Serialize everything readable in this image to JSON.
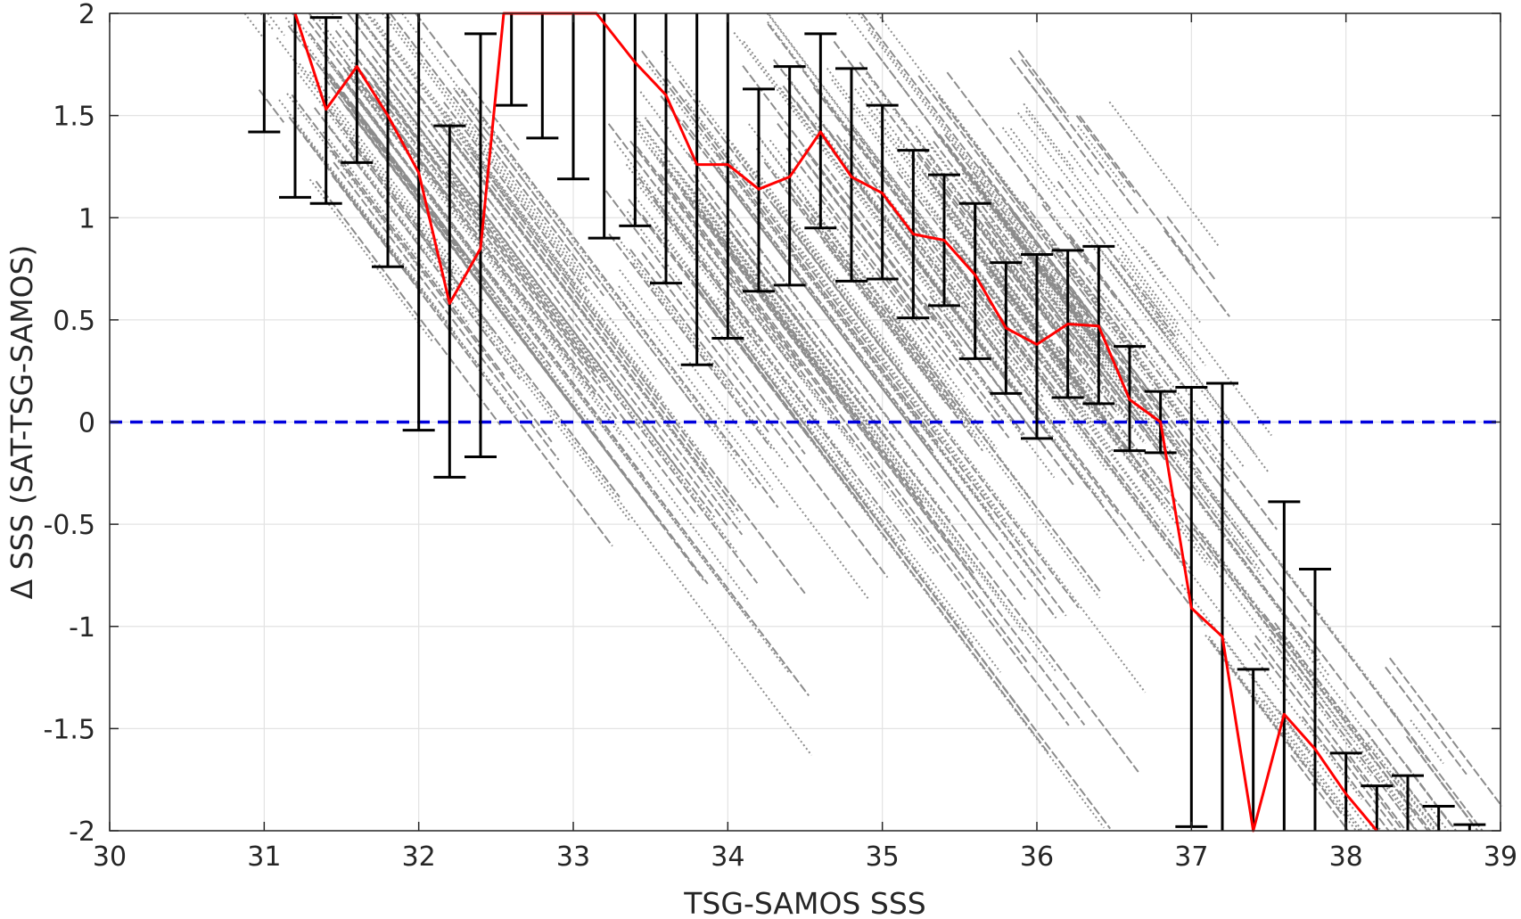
{
  "chart_data": {
    "type": "scatter",
    "title": "",
    "xlabel": "TSG-SAMOS SSS",
    "ylabel": "Δ SSS (SAT-TSG-SAMOS)",
    "xlim": [
      30,
      39
    ],
    "ylim": [
      -2,
      2
    ],
    "xticks": [
      "30",
      "31",
      "32",
      "33",
      "34",
      "35",
      "36",
      "37",
      "38",
      "39"
    ],
    "yticks": [
      "-2",
      "-1.5",
      "-1",
      "-0.5",
      "0",
      "0.5",
      "1",
      "1.5",
      "2"
    ],
    "grid": true,
    "colors": {
      "scatter": "#8c8c8c",
      "mean_line": "#ff0000",
      "error_bars": "#000000",
      "zero_line": "#0000dd"
    },
    "reference_line": {
      "y": 0,
      "style": "dashed"
    },
    "scatter_bands": [
      {
        "x0": 31.05,
        "x1": 32.5,
        "y0": 1.8,
        "n": 20
      },
      {
        "x0": 31.25,
        "x1": 33.1,
        "y0": 1.55,
        "n": 22
      },
      {
        "x0": 31.4,
        "x1": 34.1,
        "y0": 1.95,
        "n": 26
      },
      {
        "x0": 32.0,
        "x1": 34.5,
        "y0": 1.2,
        "n": 22
      },
      {
        "x0": 33.2,
        "x1": 35.0,
        "y0": 1.1,
        "n": 18
      },
      {
        "x0": 33.4,
        "x1": 36.0,
        "y0": 1.4,
        "n": 24
      },
      {
        "x0": 33.7,
        "x1": 36.5,
        "y0": 0.9,
        "n": 22
      },
      {
        "x0": 34.0,
        "x1": 35.5,
        "y0": 1.6,
        "n": 16
      },
      {
        "x0": 34.3,
        "x1": 36.3,
        "y0": 1.3,
        "n": 20
      },
      {
        "x0": 34.6,
        "x1": 36.8,
        "y0": 1.7,
        "n": 22
      },
      {
        "x0": 35.0,
        "x1": 36.5,
        "y0": 1.0,
        "n": 16
      },
      {
        "x0": 35.2,
        "x1": 36.9,
        "y0": 1.3,
        "n": 18
      },
      {
        "x0": 35.4,
        "x1": 37.0,
        "y0": 0.85,
        "n": 16
      },
      {
        "x0": 35.6,
        "x1": 37.3,
        "y0": 1.1,
        "n": 18
      },
      {
        "x0": 35.8,
        "x1": 36.6,
        "y0": 1.4,
        "n": 10
      },
      {
        "x0": 36.0,
        "x1": 37.5,
        "y0": 0.6,
        "n": 16
      },
      {
        "x0": 36.2,
        "x1": 37.0,
        "y0": 1.2,
        "n": 10
      },
      {
        "x0": 36.5,
        "x1": 37.1,
        "y0": 0.7,
        "n": 8
      },
      {
        "x0": 36.9,
        "x1": 38.3,
        "y0": -0.7,
        "n": 16
      },
      {
        "x0": 37.4,
        "x1": 38.6,
        "y0": -1.3,
        "n": 14
      },
      {
        "x0": 38.0,
        "x1": 38.9,
        "y0": -1.6,
        "n": 10
      },
      {
        "x0": 38.3,
        "x1": 38.9,
        "y0": -1.65,
        "n": 8
      },
      {
        "x0": 30.7,
        "x1": 31.0,
        "y0": 1.92,
        "n": 4
      }
    ],
    "mean_series": {
      "x": [
        31.2,
        31.4,
        31.6,
        31.8,
        32.0,
        32.2,
        32.4,
        32.55,
        33.15,
        33.4,
        33.6,
        33.8,
        34.0,
        34.2,
        34.4,
        34.6,
        34.8,
        35.0,
        35.2,
        35.4,
        35.6,
        35.8,
        36.0,
        36.2,
        36.4,
        36.6,
        36.8,
        37.0,
        37.2,
        37.4,
        37.6,
        37.8,
        38.0,
        38.2
      ],
      "y": [
        2.0,
        1.53,
        1.74,
        1.5,
        1.22,
        0.58,
        0.85,
        2.0,
        2.0,
        1.76,
        1.6,
        1.26,
        1.26,
        1.14,
        1.2,
        1.42,
        1.2,
        1.12,
        0.92,
        0.89,
        0.72,
        0.46,
        0.38,
        0.48,
        0.47,
        0.11,
        0.0,
        -0.91,
        -1.05,
        -2.0,
        -1.43,
        -1.6,
        -1.82,
        -2.0
      ]
    },
    "error_bars": [
      {
        "x": 31.0,
        "low": 1.42,
        "high": 2.0
      },
      {
        "x": 31.2,
        "low": 1.1,
        "high": 2.0
      },
      {
        "x": 31.4,
        "low": 1.07,
        "high": 1.98
      },
      {
        "x": 31.6,
        "low": 1.27,
        "high": 2.0
      },
      {
        "x": 31.8,
        "low": 0.76,
        "high": 2.0
      },
      {
        "x": 32.0,
        "low": -0.04,
        "high": 2.0
      },
      {
        "x": 32.2,
        "low": -0.27,
        "high": 1.45
      },
      {
        "x": 32.4,
        "low": -0.17,
        "high": 1.9
      },
      {
        "x": 32.6,
        "low": 1.55,
        "high": 2.0
      },
      {
        "x": 32.8,
        "low": 1.39,
        "high": 2.0
      },
      {
        "x": 33.0,
        "low": 1.19,
        "high": 2.0
      },
      {
        "x": 33.2,
        "low": 0.9,
        "high": 2.0
      },
      {
        "x": 33.4,
        "low": 0.96,
        "high": 2.0
      },
      {
        "x": 33.6,
        "low": 0.68,
        "high": 2.0
      },
      {
        "x": 33.8,
        "low": 0.28,
        "high": 2.0
      },
      {
        "x": 34.0,
        "low": 0.41,
        "high": 2.0
      },
      {
        "x": 34.2,
        "low": 0.64,
        "high": 1.63
      },
      {
        "x": 34.4,
        "low": 0.67,
        "high": 1.74
      },
      {
        "x": 34.6,
        "low": 0.95,
        "high": 1.9
      },
      {
        "x": 34.8,
        "low": 0.69,
        "high": 1.73
      },
      {
        "x": 35.0,
        "low": 0.7,
        "high": 1.55
      },
      {
        "x": 35.2,
        "low": 0.51,
        "high": 1.33
      },
      {
        "x": 35.4,
        "low": 0.57,
        "high": 1.21
      },
      {
        "x": 35.6,
        "low": 0.31,
        "high": 1.07
      },
      {
        "x": 35.8,
        "low": 0.14,
        "high": 0.78
      },
      {
        "x": 36.0,
        "low": -0.08,
        "high": 0.82
      },
      {
        "x": 36.2,
        "low": 0.12,
        "high": 0.84
      },
      {
        "x": 36.4,
        "low": 0.09,
        "high": 0.86
      },
      {
        "x": 36.6,
        "low": -0.14,
        "high": 0.37
      },
      {
        "x": 36.8,
        "low": -0.15,
        "high": 0.15
      },
      {
        "x": 37.0,
        "low": -1.98,
        "high": 0.17
      },
      {
        "x": 37.2,
        "low": -2.0,
        "high": 0.19
      },
      {
        "x": 37.4,
        "low": -2.0,
        "high": -1.21
      },
      {
        "x": 37.6,
        "low": -2.0,
        "high": -0.39
      },
      {
        "x": 37.8,
        "low": -2.0,
        "high": -0.72
      },
      {
        "x": 38.0,
        "low": -2.0,
        "high": -1.62
      },
      {
        "x": 38.2,
        "low": -2.0,
        "high": -1.78
      },
      {
        "x": 38.4,
        "low": -2.0,
        "high": -1.73
      },
      {
        "x": 38.6,
        "low": -2.0,
        "high": -1.88
      },
      {
        "x": 38.8,
        "low": -2.0,
        "high": -1.97
      }
    ]
  }
}
